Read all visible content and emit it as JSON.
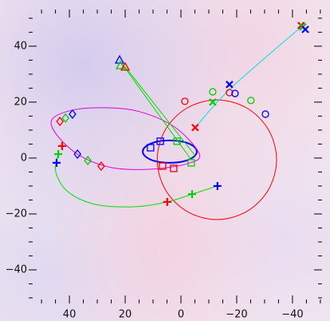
{
  "chart_data": {
    "type": "scatter",
    "xlim": [
      54.6,
      -50.6
    ],
    "ylim": [
      -52,
      53.1
    ],
    "xticks": [
      40,
      20,
      0,
      {
        "value": -20,
        "label": "−20"
      },
      {
        "value": -40,
        "label": "−40"
      }
    ],
    "yticks": [
      40,
      20,
      0,
      {
        "value": -20,
        "label": "−20"
      },
      {
        "value": -40,
        "label": "−40"
      }
    ],
    "xminorticks": [
      50,
      45,
      35,
      30,
      25,
      15,
      10,
      5,
      -5,
      -10,
      -15,
      -25,
      -30,
      -35,
      -45,
      -50
    ],
    "yminorticks": [
      50,
      45,
      35,
      30,
      25,
      15,
      10,
      5,
      -5,
      -10,
      -15,
      -25,
      -30,
      -35,
      -45,
      -50
    ],
    "lines": [
      {
        "color": "#0000ff",
        "closed": true,
        "width": 2,
        "x": [
          13.7,
          12.4,
          8.9,
          4,
          -0.9,
          -4.4,
          -5.7,
          -4.4,
          -0.9,
          4,
          8.9,
          12.4
        ],
        "y": [
          2.3,
          4.3,
          5.8,
          6.3,
          5.8,
          4.3,
          2.3,
          0.3,
          -1.2,
          -1.7,
          -1.2,
          0.3
        ]
      },
      {
        "color": "#e000e0",
        "closed": true,
        "width": 1,
        "x": [
          46.3,
          39.1,
          27.7,
          14.9,
          2,
          -6.6,
          -2.3,
          10.6,
          24.9,
          36.3,
          44.3
        ],
        "y": [
          13.7,
          17.1,
          18,
          16.6,
          10.9,
          1.4,
          -2,
          -4,
          -3.4,
          0.9,
          8
        ]
      },
      {
        "color": "#ff0000",
        "closed": true,
        "width": 1,
        "x": [
          8.5,
          5.6,
          -2.2,
          -12.9,
          -23.6,
          -31.4,
          -34.3,
          -31.4,
          -23.6,
          -12.9,
          -2.2,
          5.6
        ],
        "y": [
          -0.6,
          10.1,
          17.9,
          20.8,
          17.9,
          10.1,
          -0.6,
          -11.3,
          -19.1,
          -22,
          -19.1,
          -11.3
        ]
      },
      {
        "color": "#00e000",
        "closed": false,
        "width": 1,
        "x": [
          44,
          44.9,
          40.6,
          30.6,
          16.3,
          4.9,
          -4,
          -13.1
        ],
        "y": [
          1.4,
          -4.9,
          -12,
          -16.6,
          -17.4,
          -15.7,
          -12.9,
          -10
        ]
      },
      {
        "color": "#00e0e0",
        "closed": false,
        "width": 1,
        "x": [
          -5.1,
          -18,
          -43.7
        ],
        "y": [
          10.9,
          25.1,
          47.4
        ]
      },
      {
        "color": "#00e000",
        "closed": false,
        "width": 1,
        "x": [
          22,
          -3.7
        ],
        "y": [
          34.9,
          -0.6
        ]
      },
      {
        "color": "#00e000",
        "closed": false,
        "width": 1,
        "x": [
          20,
          -5.1
        ],
        "y": [
          32.6,
          0.9
        ]
      }
    ],
    "series": [
      {
        "color": "#ff0000",
        "marker": "square",
        "x": [
          6.6,
          2.6
        ],
        "y": [
          -2.9,
          -3.7
        ]
      },
      {
        "color": "#00d000",
        "marker": "square",
        "x": [
          1.4,
          -3.7
        ],
        "y": [
          6,
          -1.7
        ]
      },
      {
        "color": "#0000ff",
        "marker": "square",
        "x": [
          7.4,
          10.9
        ],
        "y": [
          6,
          3.7
        ]
      },
      {
        "color": "#ff0000",
        "marker": "diamond",
        "x": [
          43.4,
          28.6
        ],
        "y": [
          13.1,
          -2.9
        ]
      },
      {
        "color": "#00d000",
        "marker": "diamond",
        "x": [
          41.4,
          33.4
        ],
        "y": [
          14.3,
          -0.9
        ]
      },
      {
        "color": "#0000ff",
        "marker": "diamond",
        "x": [
          38.9,
          37.1
        ],
        "y": [
          15.7,
          1.4
        ]
      },
      {
        "color": "#ff0000",
        "marker": "circle",
        "x": [
          -1.4,
          -17.4
        ],
        "y": [
          20.3,
          23.4
        ]
      },
      {
        "color": "#00d000",
        "marker": "circle",
        "x": [
          -11.4,
          -25.1
        ],
        "y": [
          23.7,
          20.6
        ]
      },
      {
        "color": "#0000ff",
        "marker": "circle",
        "x": [
          -19.4,
          -30.3
        ],
        "y": [
          23.1,
          15.7
        ]
      },
      {
        "color": "#ff0000",
        "marker": "plus",
        "x": [
          42.6,
          4.9
        ],
        "y": [
          4.3,
          -15.7
        ]
      },
      {
        "color": "#00d000",
        "marker": "plus",
        "x": [
          44,
          -4
        ],
        "y": [
          1.4,
          -12.9
        ]
      },
      {
        "color": "#0000ff",
        "marker": "plus",
        "x": [
          44.6,
          -13.1
        ],
        "y": [
          -1.7,
          -10
        ]
      },
      {
        "color": "#ff0000",
        "marker": "cross",
        "x": [
          -5.1,
          -43.1
        ],
        "y": [
          10.9,
          47.4
        ]
      },
      {
        "color": "#00d000",
        "marker": "cross",
        "x": [
          -11.4,
          -43.7
        ],
        "y": [
          20,
          46.9
        ]
      },
      {
        "color": "#0000ff",
        "marker": "cross",
        "x": [
          -17.4,
          -44.6
        ],
        "y": [
          26.3,
          46
        ]
      },
      {
        "color": "#0000ff",
        "marker": "triangle",
        "x": [
          22
        ],
        "y": [
          35.1
        ]
      },
      {
        "color": "#00d000",
        "marker": "triangle",
        "x": [
          21.7
        ],
        "y": [
          33.1
        ]
      },
      {
        "color": "#ff0000",
        "marker": "triangle",
        "x": [
          20
        ],
        "y": [
          32.6
        ]
      }
    ]
  }
}
